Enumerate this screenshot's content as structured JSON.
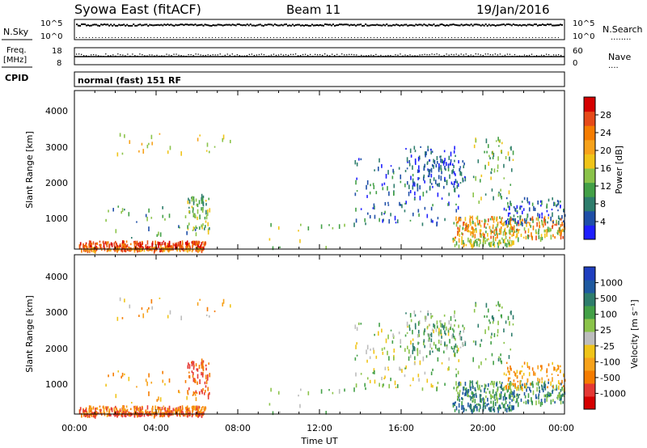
{
  "header": {
    "station": "Syowa East (fitACF)",
    "beam": "Beam 11",
    "date": "19/Jan/2016"
  },
  "top_panels": {
    "nsky_label": "N.Sky",
    "nsearch_label": "N.Search",
    "nsearch_legend": "........",
    "left_ticks_top": [
      "10^5",
      "10^0"
    ],
    "right_ticks_top": [
      "10^5",
      "10^0"
    ],
    "freq_label_line1": "Freq.",
    "freq_label_line2": "[MHz]",
    "freq_ticks": [
      "18",
      "8"
    ],
    "nave_label": "Nave",
    "nave_legend": "....",
    "nave_ticks": [
      "60",
      "0"
    ],
    "cpid_label": "CPID",
    "mode_text": "normal (fast) 151 RF"
  },
  "axes": {
    "ylabel": "Slant Range [km]",
    "yticks": [
      "1000",
      "2000",
      "3000",
      "4000"
    ],
    "xticks": [
      "00:00",
      "04:00",
      "08:00",
      "12:00",
      "16:00",
      "20:00",
      "00:00"
    ],
    "xlabel": "Time UT"
  },
  "colorbars": {
    "power": {
      "label": "Power [dB]",
      "ticks": [
        "4",
        "8",
        "12",
        "16",
        "20",
        "24",
        "28"
      ],
      "colors": [
        "#1f1fff",
        "#1f4fa8",
        "#2e7d6c",
        "#43a047",
        "#8bc34a",
        "#f0c419",
        "#f7a21b",
        "#f57c00",
        "#e64a19",
        "#d50000"
      ]
    },
    "velocity": {
      "label": "Velocity [m s⁻¹]",
      "ticks": [
        "1000",
        "500",
        "100",
        "25",
        "-25",
        "-100",
        "-500",
        "-1000"
      ],
      "colors": [
        "#1f3fbf",
        "#1f5aa0",
        "#2e7d6c",
        "#43a047",
        "#8bc34a",
        "#bdbdbd",
        "#f0c419",
        "#f7a21b",
        "#f57c00",
        "#e53935",
        "#d50000"
      ]
    }
  },
  "chart_data": {
    "type": "heatmap",
    "x_range_hours": [
      0,
      24
    ],
    "y_range_km": [
      180,
      4500
    ],
    "panels": [
      "Power",
      "Velocity"
    ]
  }
}
